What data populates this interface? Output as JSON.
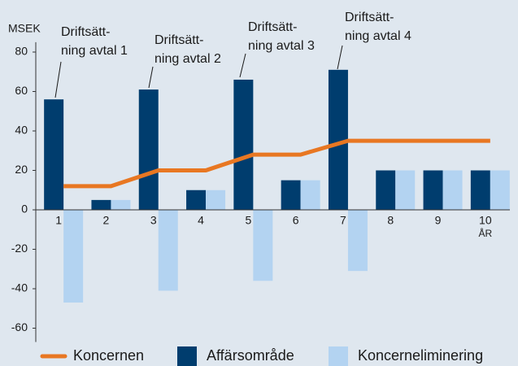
{
  "chart_data": {
    "type": "bar",
    "y_label": "MSEK",
    "x_label": "ÅR",
    "categories": [
      "1",
      "2",
      "3",
      "4",
      "5",
      "6",
      "7",
      "8",
      "9",
      "10"
    ],
    "series": [
      {
        "name": "Koncernen",
        "type": "line",
        "color": "#e87722",
        "values": [
          12,
          12,
          20,
          20,
          28,
          28,
          35,
          35,
          35,
          35
        ]
      },
      {
        "name": "Affärsområde",
        "type": "bar",
        "color": "#003d6e",
        "values": [
          56,
          5,
          61,
          10,
          66,
          15,
          71,
          20,
          20,
          20
        ]
      },
      {
        "name": "Koncerneliminering",
        "type": "bar",
        "color": "#b3d3f1",
        "values": [
          -47,
          5,
          -41,
          10,
          -36,
          15,
          -31,
          20,
          20,
          20
        ]
      }
    ],
    "annotations": [
      {
        "lines": [
          "Driftsätt-",
          "ning avtal 1"
        ]
      },
      {
        "lines": [
          "Driftsätt-",
          "ning avtal 2"
        ]
      },
      {
        "lines": [
          "Driftsätt-",
          "ning avtal 3"
        ]
      },
      {
        "lines": [
          "Driftsätt-",
          "ning avtal 4"
        ]
      }
    ],
    "ylim": [
      -67,
      85
    ],
    "yticks": [
      80,
      60,
      40,
      20,
      0,
      -20,
      -40,
      -60
    ],
    "grid": false,
    "legend": "bottom"
  }
}
